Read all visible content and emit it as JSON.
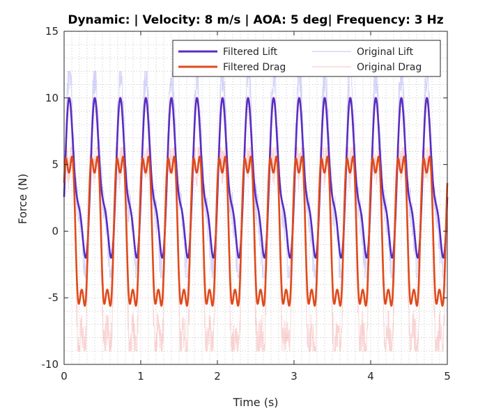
{
  "chart_data": {
    "type": "line",
    "title": "Dynamic: | Velocity: 8 m/s  | AOA: 5 deg| Frequency: 3 Hz",
    "xlabel": "Time (s)",
    "ylabel": "Force (N)",
    "xlim": [
      0,
      5
    ],
    "ylim": [
      -10,
      15
    ],
    "xticks": [
      0,
      1,
      2,
      3,
      4,
      5
    ],
    "yticks": [
      -10,
      -5,
      0,
      5,
      10,
      15
    ],
    "grid": "dotted",
    "legend_position": "top-right",
    "frequency_hz": 3,
    "series": [
      {
        "name": "Filtered Lift",
        "color": "#5b2bc0",
        "min": -2,
        "max": 10,
        "mean": 4
      },
      {
        "name": "Filtered Drag",
        "color": "#e04a1a",
        "min": -5.6,
        "max": 5.6,
        "mean": 0
      },
      {
        "name": "Original Lift",
        "color": "#8a8af0",
        "min": -3.5,
        "max": 12,
        "mean": 4
      },
      {
        "name": "Original Drag",
        "color": "#f08888",
        "min": -9,
        "max": 6.3,
        "mean": 0
      }
    ]
  }
}
